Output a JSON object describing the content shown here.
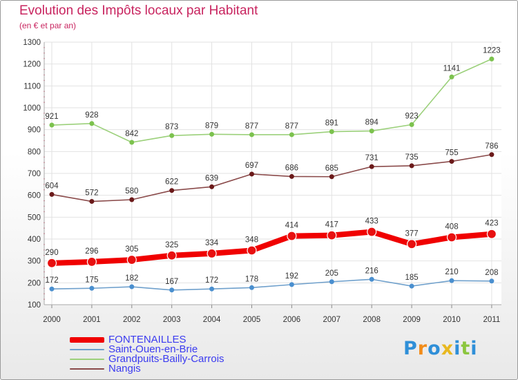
{
  "header": {
    "title": "Evolution des Impôts locaux par Habitant",
    "subtitle": "(en € et par an)"
  },
  "logo": {
    "text": "Proxiti",
    "letters": [
      "P",
      "r",
      "o",
      "x",
      "i",
      "t",
      "i"
    ],
    "colors": [
      "#2f8fd8",
      "#f28c1a",
      "#2f8fd8",
      "#e8b820",
      "#2f8fd8",
      "#8cc63f",
      "#2f8fd8"
    ]
  },
  "chart_data": {
    "type": "line",
    "title": "Evolution des Impôts locaux par Habitant",
    "subtitle": "(en € et par an)",
    "xlabel": "",
    "ylabel": "",
    "x": [
      "2000",
      "2001",
      "2002",
      "2003",
      "2004",
      "2005",
      "2006",
      "2007",
      "2008",
      "2009",
      "2010",
      "2011"
    ],
    "ylim": [
      100,
      1300
    ],
    "yticks": [
      100,
      200,
      300,
      400,
      500,
      600,
      700,
      800,
      900,
      1000,
      1100,
      1200,
      1300
    ],
    "grid": true,
    "legend_position": "bottom-left",
    "series": [
      {
        "name": "FONTENAILLES",
        "color": "#f00000",
        "point_color": "#e81010",
        "emphasis": true,
        "values": [
          290,
          296,
          305,
          325,
          334,
          348,
          414,
          417,
          433,
          377,
          408,
          423
        ]
      },
      {
        "name": "Saint-Ouen-en-Brie",
        "color": "#6fa0cc",
        "point_color": "#4a8fcf",
        "values": [
          172,
          175,
          182,
          167,
          172,
          178,
          192,
          205,
          216,
          185,
          210,
          208
        ]
      },
      {
        "name": "Grandpuits-Bailly-Carrois",
        "color": "#9bd07a",
        "point_color": "#7cc24e",
        "values": [
          921,
          928,
          842,
          873,
          879,
          877,
          877,
          891,
          894,
          923,
          1141,
          1223
        ]
      },
      {
        "name": "Nangis",
        "color": "#8a4a4a",
        "point_color": "#6b1a1a",
        "values": [
          604,
          572,
          580,
          622,
          639,
          697,
          686,
          685,
          731,
          735,
          755,
          786
        ]
      }
    ]
  }
}
